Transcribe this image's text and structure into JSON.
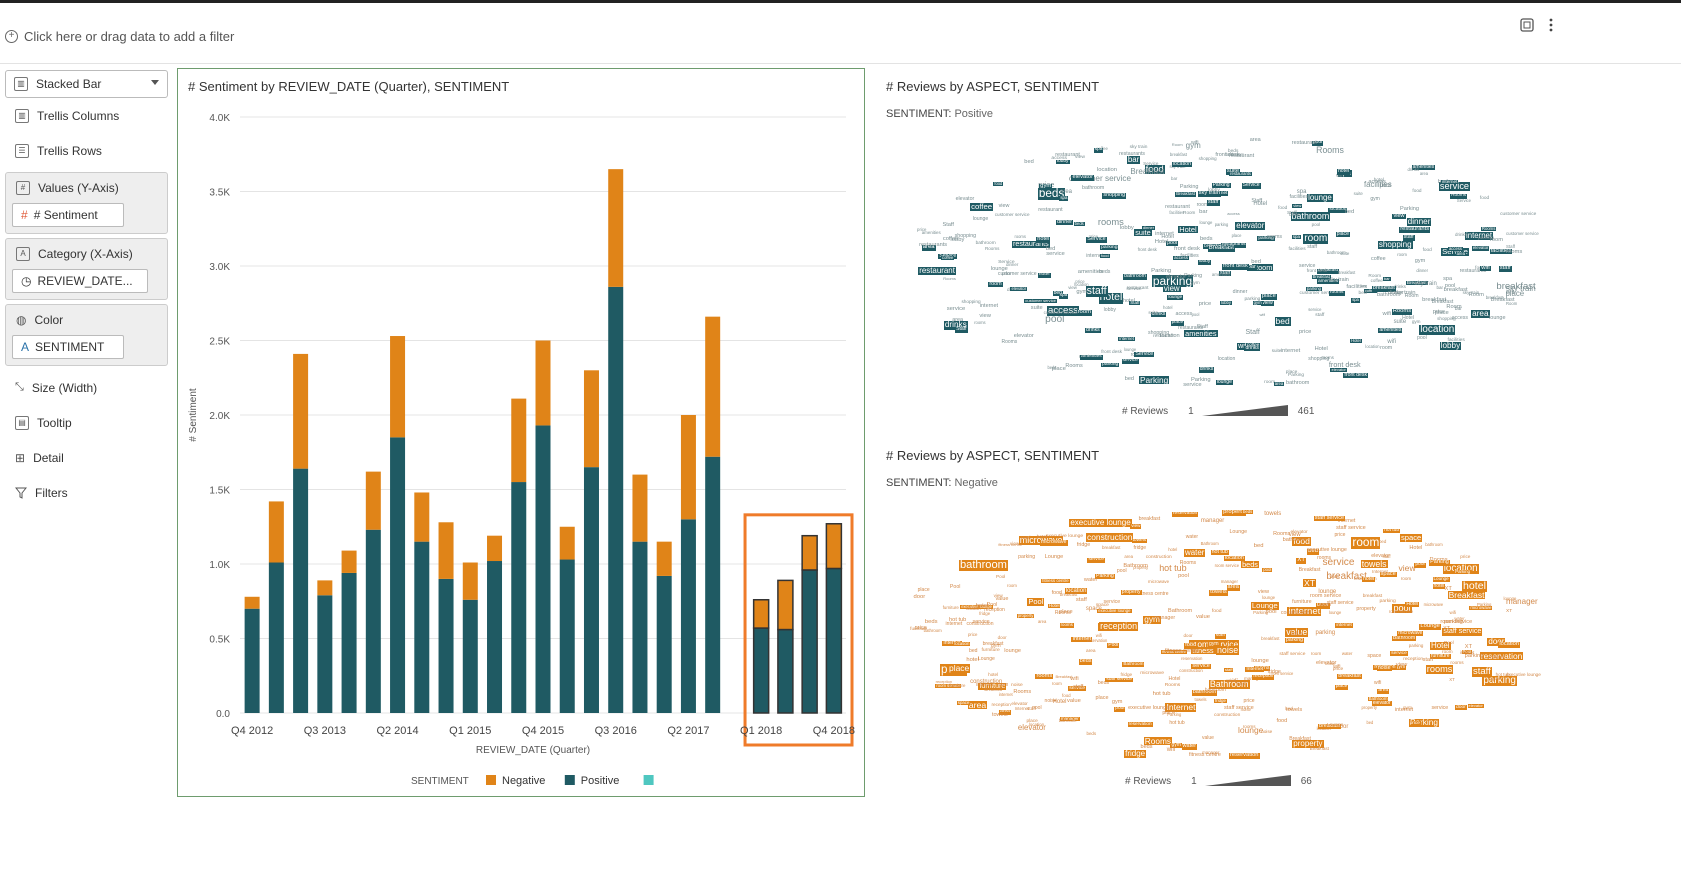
{
  "filter_bar": {
    "add_filter_text": "Click here or drag data to add a filter"
  },
  "toolbar": {
    "icons": [
      "grammar-toggle-icon",
      "more-options-icon"
    ]
  },
  "grammar": {
    "viz_type": "Stacked Bar",
    "trellis_columns": "Trellis Columns",
    "trellis_rows": "Trellis Rows",
    "values_label": "Values (Y-Axis)",
    "values_pill": "# Sentiment",
    "category_label": "Category (X-Axis)",
    "category_pill": "REVIEW_DATE...",
    "color_label": "Color",
    "color_pill": "SENTIMENT",
    "size_label": "Size (Width)",
    "tooltip_label": "Tooltip",
    "detail_label": "Detail",
    "filters_label": "Filters"
  },
  "bar_chart": {
    "title": "# Sentiment by REVIEW_DATE (Quarter), SENTIMENT"
  },
  "chart_data": {
    "type": "bar",
    "stacked": true,
    "title": "# Sentiment by REVIEW_DATE (Quarter), SENTIMENT",
    "xlabel": "REVIEW_DATE (Quarter)",
    "ylabel": "# Sentiment",
    "ylim": [
      0,
      4000
    ],
    "yticks": [
      "0.0",
      "0.5K",
      "1.0K",
      "1.5K",
      "2.0K",
      "2.5K",
      "3.0K",
      "3.5K",
      "4.0K"
    ],
    "xtick_labels": [
      "Q4 2012",
      "Q3 2013",
      "Q2 2014",
      "Q1 2015",
      "Q4 2015",
      "Q3 2016",
      "Q2 2017",
      "Q1 2018",
      "Q4 2018"
    ],
    "categories": [
      "Q4 2012",
      "Q1 2013",
      "Q2 2013",
      "Q3 2013",
      "Q4 2013",
      "Q1 2014",
      "Q2 2014",
      "Q3 2014",
      "Q4 2014",
      "Q1 2015",
      "Q2 2015",
      "Q3 2015",
      "Q4 2015",
      "Q1 2016",
      "Q2 2016",
      "Q3 2016",
      "Q4 2016",
      "Q1 2017",
      "Q2 2017",
      "Q3 2017",
      "Q4 2017",
      "Q1 2018",
      "Q2 2018",
      "Q3 2018",
      "Q4 2018"
    ],
    "series": [
      {
        "name": "Positive",
        "color": "#1f5a63",
        "values": [
          700,
          1010,
          1640,
          790,
          940,
          1230,
          1850,
          1150,
          900,
          760,
          1020,
          1550,
          1930,
          1030,
          1650,
          2860,
          1150,
          920,
          1300,
          1720,
          0,
          570,
          560,
          960,
          970
        ]
      },
      {
        "name": "Negative",
        "color": "#e08418",
        "values": [
          80,
          410,
          770,
          100,
          150,
          390,
          680,
          330,
          380,
          250,
          170,
          560,
          570,
          220,
          650,
          790,
          450,
          230,
          700,
          940,
          0,
          190,
          330,
          230,
          300
        ]
      }
    ],
    "legend_title": "SENTIMENT",
    "legend": [
      {
        "label": "Negative",
        "color": "#e08418"
      },
      {
        "label": "Positive",
        "color": "#1f5a63"
      },
      {
        "label": "",
        "color": "#4fc7c0"
      }
    ],
    "highlight": [
      "Q1 2018",
      "Q2 2018",
      "Q3 2018",
      "Q4 2018"
    ],
    "grid": true
  },
  "cloud_positive": {
    "title": "# Reviews by ASPECT, SENTIMENT",
    "filter_label": "SENTIMENT:",
    "filter_value": "Positive",
    "size_label": "# Reviews",
    "range_min": "1",
    "range_max": "461",
    "color": "#1f5a63",
    "words": [
      "service",
      "room",
      "rooms",
      "hotel",
      "location",
      "breakfast",
      "staff",
      "food",
      "parking",
      "beds",
      "pool",
      "access",
      "Hotel",
      "Rooms",
      "Breakfast",
      "amenities",
      "price",
      "shopping",
      "place",
      "restaurants",
      "bathroom",
      "customer service",
      "front desk",
      "sky train",
      "elevator",
      "wifi",
      "bed",
      "lobby",
      "view",
      "internet",
      "Parking",
      "Staff",
      "Room",
      "Service",
      "restaurant",
      "area",
      "facilities",
      "lounge",
      "gym",
      "coffee",
      "dinner",
      "bar",
      "spa",
      "drinks",
      "suite"
    ]
  },
  "cloud_negative": {
    "title": "# Reviews by ASPECT, SENTIMENT",
    "filter_label": "SENTIMENT:",
    "filter_value": "Negative",
    "size_label": "# Reviews",
    "range_min": "1",
    "range_max": "66",
    "color": "#e08418",
    "words": [
      "room",
      "hotel",
      "parking",
      "breakfast",
      "internet",
      "pool",
      "service",
      "staff",
      "location",
      "price",
      "rooms",
      "bathroom",
      "elevator",
      "gym",
      "hot tub",
      "lounge",
      "fridge",
      "view",
      "water",
      "space",
      "food",
      "bed",
      "Breakfast",
      "Parking",
      "Internet",
      "property",
      "reception",
      "construction",
      "fitness centre",
      "executive lounge",
      "room service",
      "manager",
      "wifi",
      "door",
      "beds",
      "XT",
      "Rooms",
      "place",
      "noise",
      "towels",
      "microwave",
      "value",
      "area",
      "Hotel",
      "Lounge",
      "Pool",
      "Bathroom",
      "furniture",
      "reservation",
      "staff service"
    ]
  }
}
